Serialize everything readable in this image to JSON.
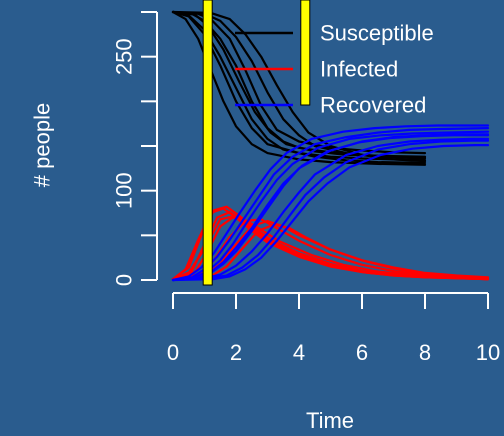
{
  "chart_data": {
    "type": "line",
    "xlabel": "Time",
    "ylabel": "# people",
    "xlim": [
      0,
      10
    ],
    "ylim": [
      0,
      300
    ],
    "x_ticks": [
      0,
      2,
      4,
      6,
      8,
      10
    ],
    "x_tick_labels": [
      "0",
      "2",
      "4",
      "6",
      "8",
      "10"
    ],
    "y_ticks": [
      0,
      50,
      100,
      150,
      200,
      250,
      300
    ],
    "y_tick_labels": [
      "0",
      "",
      "100",
      "",
      "",
      "250",
      ""
    ],
    "grid": false,
    "legend_position": "top-right",
    "background_color": "#2a5c8e",
    "axis_color": "#ffffff",
    "series_groups": [
      {
        "name": "Susceptible",
        "color": "#000000",
        "runs": [
          {
            "x": [
              0,
              0.6,
              1.0,
              1.5,
              2.0,
              2.5,
              3.0,
              3.5,
              4.0,
              5.0,
              6.0,
              7.0,
              8.0
            ],
            "y": [
              300,
              298,
              290,
              270,
              240,
              200,
              170,
              155,
              148,
              143,
              140,
              138,
              137
            ]
          },
          {
            "x": [
              0,
              0.5,
              1.0,
              1.5,
              2.0,
              2.5,
              3.0,
              4.0,
              5.0,
              6.0,
              7.0,
              8.0
            ],
            "y": [
              300,
              295,
              275,
              240,
              200,
              170,
              152,
              142,
              138,
              136,
              135,
              134
            ]
          },
          {
            "x": [
              0,
              0.8,
              1.2,
              1.8,
              2.3,
              2.8,
              3.3,
              4.0,
              5.0,
              6.0,
              7.0,
              8.0
            ],
            "y": [
              300,
              298,
              292,
              270,
              235,
              195,
              168,
              155,
              148,
              145,
              143,
              142
            ]
          },
          {
            "x": [
              0,
              0.5,
              1.0,
              1.5,
              2.0,
              2.5,
              3.0,
              3.5,
              4.5,
              5.5,
              6.5,
              8.0
            ],
            "y": [
              300,
              296,
              280,
              250,
              215,
              180,
              158,
              146,
              138,
              134,
              132,
              131
            ]
          },
          {
            "x": [
              0,
              1.0,
              1.5,
              2.0,
              2.5,
              3.0,
              3.5,
              4.0,
              4.5,
              5.5,
              6.5,
              8.0
            ],
            "y": [
              300,
              298,
              290,
              272,
              245,
              210,
              180,
              162,
              150,
              142,
              138,
              136
            ]
          },
          {
            "x": [
              0,
              0.4,
              0.8,
              1.2,
              1.6,
              2.0,
              2.5,
              3.0,
              4.0,
              5.0,
              6.5,
              8.0
            ],
            "y": [
              300,
              292,
              270,
              235,
              200,
              172,
              152,
              142,
              135,
              132,
              130,
              129
            ]
          },
          {
            "x": [
              0,
              1.2,
              1.8,
              2.3,
              2.8,
              3.3,
              3.8,
              4.3,
              5.0,
              6.0,
              7.0,
              8.0
            ],
            "y": [
              300,
              299,
              292,
              275,
              250,
              218,
              188,
              165,
              150,
              140,
              135,
              133
            ]
          },
          {
            "x": [
              0,
              0.7,
              1.1,
              1.6,
              2.1,
              2.6,
              3.1,
              3.6,
              4.5,
              5.5,
              6.5,
              8.0
            ],
            "y": [
              300,
              297,
              285,
              258,
              222,
              188,
              165,
              152,
              144,
              140,
              139,
              138
            ]
          }
        ]
      },
      {
        "name": "Infected",
        "color": "#ff0000",
        "runs": [
          {
            "x": [
              0,
              0.5,
              1.0,
              1.5,
              2.0,
              2.5,
              3.0,
              4.0,
              5.0,
              6.0,
              7.0,
              8.0,
              9.0,
              10.0
            ],
            "y": [
              1,
              8,
              35,
              68,
              72,
              60,
              46,
              28,
              16,
              9,
              5,
              3,
              2,
              1
            ]
          },
          {
            "x": [
              0,
              0.4,
              0.8,
              1.2,
              1.6,
              2.0,
              2.5,
              3.0,
              4.0,
              5.0,
              6.0,
              7.0,
              8.0,
              10.0
            ],
            "y": [
              1,
              12,
              45,
              75,
              80,
              70,
              55,
              42,
              26,
              15,
              9,
              5,
              3,
              1
            ]
          },
          {
            "x": [
              0,
              0.8,
              1.3,
              1.8,
              2.3,
              2.8,
              3.3,
              4.0,
              5.0,
              6.0,
              7.0,
              8.0,
              9.0,
              10.0
            ],
            "y": [
              1,
              6,
              22,
              48,
              66,
              68,
              58,
              44,
              28,
              17,
              10,
              6,
              3,
              2
            ]
          },
          {
            "x": [
              0,
              0.6,
              1.0,
              1.4,
              1.8,
              2.2,
              2.7,
              3.2,
              4.2,
              5.2,
              6.2,
              7.5,
              9.0,
              10.0
            ],
            "y": [
              1,
              10,
              40,
              70,
              76,
              66,
              52,
              40,
              24,
              14,
              8,
              4,
              2,
              1
            ]
          },
          {
            "x": [
              0,
              1.0,
              1.5,
              2.0,
              2.5,
              3.0,
              3.5,
              4.0,
              5.0,
              6.0,
              7.0,
              8.0,
              9.0,
              10.0
            ],
            "y": [
              1,
              5,
              18,
              40,
              60,
              66,
              60,
              50,
              34,
              22,
              13,
              7,
              4,
              2
            ]
          },
          {
            "x": [
              0,
              0.5,
              0.9,
              1.3,
              1.7,
              2.1,
              2.6,
              3.1,
              4.0,
              5.0,
              6.0,
              7.0,
              8.5,
              10.0
            ],
            "y": [
              1,
              14,
              50,
              78,
              82,
              72,
              58,
              45,
              30,
              18,
              10,
              6,
              3,
              1
            ]
          },
          {
            "x": [
              0,
              1.2,
              1.7,
              2.2,
              2.7,
              3.2,
              3.7,
              4.2,
              5.0,
              6.0,
              7.0,
              8.0,
              9.0,
              10.0
            ],
            "y": [
              1,
              4,
              15,
              35,
              55,
              62,
              58,
              48,
              34,
              22,
              14,
              8,
              5,
              3
            ]
          },
          {
            "x": [
              0,
              0.7,
              1.1,
              1.5,
              1.9,
              2.4,
              2.9,
              3.4,
              4.4,
              5.4,
              6.4,
              7.4,
              8.8,
              10.0
            ],
            "y": [
              1,
              9,
              32,
              60,
              70,
              65,
              54,
              43,
              28,
              17,
              10,
              6,
              3,
              1
            ]
          }
        ]
      },
      {
        "name": "Recovered",
        "color": "#0000ff",
        "runs": [
          {
            "x": [
              0,
              0.8,
              1.2,
              1.6,
              2.0,
              2.5,
              3.0,
              3.5,
              4.0,
              5.0,
              6.0,
              7.0,
              8.0,
              9.0,
              10.0
            ],
            "y": [
              0,
              2,
              8,
              18,
              32,
              55,
              80,
              105,
              125,
              145,
              155,
              160,
              162,
              163,
              163
            ]
          },
          {
            "x": [
              0,
              0.6,
              1.0,
              1.4,
              1.8,
              2.2,
              2.7,
              3.2,
              3.8,
              4.5,
              5.5,
              6.5,
              7.5,
              8.5,
              10.0
            ],
            "y": [
              0,
              3,
              12,
              26,
              45,
              66,
              92,
              118,
              138,
              152,
              160,
              165,
              168,
              169,
              170
            ]
          },
          {
            "x": [
              0,
              1.0,
              1.5,
              2.0,
              2.5,
              3.0,
              3.5,
              4.0,
              4.5,
              5.5,
              6.5,
              7.5,
              8.5,
              9.5,
              10.0
            ],
            "y": [
              0,
              2,
              6,
              16,
              32,
              52,
              76,
              98,
              118,
              140,
              150,
              155,
              157,
              158,
              158
            ]
          },
          {
            "x": [
              0,
              0.7,
              1.1,
              1.5,
              1.9,
              2.3,
              2.8,
              3.3,
              3.8,
              4.6,
              5.6,
              6.6,
              7.6,
              8.6,
              10.0
            ],
            "y": [
              0,
              3,
              10,
              22,
              40,
              62,
              88,
              112,
              130,
              148,
              158,
              162,
              164,
              165,
              166
            ]
          },
          {
            "x": [
              0,
              1.2,
              1.7,
              2.2,
              2.7,
              3.2,
              3.7,
              4.2,
              4.8,
              5.5,
              6.5,
              7.5,
              8.5,
              9.5,
              10.0
            ],
            "y": [
              0,
              2,
              5,
              14,
              28,
              48,
              72,
              95,
              115,
              132,
              146,
              152,
              155,
              156,
              156
            ]
          },
          {
            "x": [
              0,
              0.5,
              0.9,
              1.3,
              1.7,
              2.1,
              2.6,
              3.1,
              3.6,
              4.4,
              5.4,
              6.4,
              7.4,
              8.4,
              10.0
            ],
            "y": [
              0,
              4,
              14,
              30,
              52,
              74,
              100,
              124,
              142,
              158,
              166,
              170,
              172,
              173,
              173
            ]
          },
          {
            "x": [
              0,
              1.3,
              1.8,
              2.3,
              2.8,
              3.3,
              3.8,
              4.3,
              4.9,
              5.6,
              6.6,
              7.6,
              8.6,
              9.6,
              10.0
            ],
            "y": [
              0,
              1,
              4,
              12,
              25,
              44,
              66,
              88,
              108,
              126,
              140,
              147,
              150,
              151,
              151
            ]
          },
          {
            "x": [
              0,
              0.8,
              1.2,
              1.6,
              2.0,
              2.5,
              3.0,
              3.5,
              4.1,
              4.9,
              5.9,
              6.9,
              7.9,
              8.9,
              10.0
            ],
            "y": [
              0,
              2,
              9,
              20,
              36,
              58,
              84,
              108,
              128,
              144,
              154,
              159,
              161,
              162,
              162
            ]
          }
        ]
      }
    ],
    "legend": [
      {
        "label": "Susceptible",
        "color": "#000000"
      },
      {
        "label": "Infected",
        "color": "#ff0000"
      },
      {
        "label": "Recovered",
        "color": "#0000ff"
      }
    ],
    "annotations": [
      {
        "type": "vertical-marker",
        "color": "#ffff00",
        "x": 1.1,
        "y_range": [
          0,
          300
        ]
      },
      {
        "type": "vertical-marker",
        "color": "#ffff00",
        "x": 4.2,
        "y_range": [
          232,
          300
        ]
      }
    ]
  }
}
